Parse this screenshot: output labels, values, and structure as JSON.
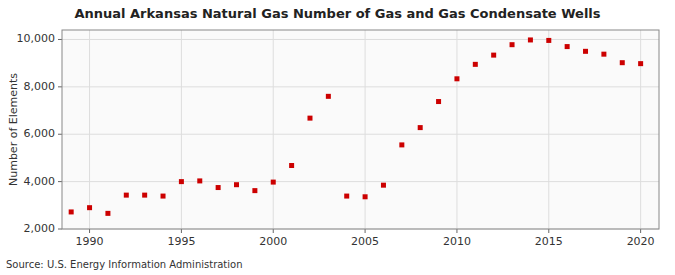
{
  "chart_data": {
    "type": "scatter",
    "title": "Annual Arkansas Natural Gas Number of Gas and Gas Condensate Wells",
    "y_label": "Number of Elements",
    "annotations": [
      "Source: U.S. Energy Information Administration"
    ],
    "color": "#cc0000",
    "marker": "square",
    "grid": true,
    "xlim": [
      1988.5,
      2021
    ],
    "ylim": [
      2000,
      10400
    ],
    "xticks": [
      1990,
      1995,
      2000,
      2005,
      2010,
      2015,
      2020
    ],
    "yticks": [
      {
        "value": 2000,
        "label": "2,000"
      },
      {
        "value": 4000,
        "label": "4,000"
      },
      {
        "value": 6000,
        "label": "6,000"
      },
      {
        "value": 8000,
        "label": "8,000"
      },
      {
        "value": 10000,
        "label": "10,000"
      }
    ],
    "x": [
      1989,
      1990,
      1991,
      1992,
      1993,
      1994,
      1995,
      1996,
      1997,
      1998,
      1999,
      2000,
      2001,
      2002,
      2003,
      2004,
      2005,
      2006,
      2007,
      2008,
      2009,
      2010,
      2011,
      2012,
      2013,
      2014,
      2015,
      2016,
      2017,
      2018,
      2019,
      2020
    ],
    "values": [
      2720,
      2900,
      2660,
      3430,
      3430,
      3390,
      4000,
      4030,
      3750,
      3870,
      3620,
      3980,
      4680,
      6680,
      7600,
      3390,
      3360,
      3850,
      5550,
      6280,
      7380,
      8340,
      8950,
      9340,
      9780,
      9980,
      9960,
      9700,
      9500,
      9380,
      9020,
      8980
    ]
  }
}
